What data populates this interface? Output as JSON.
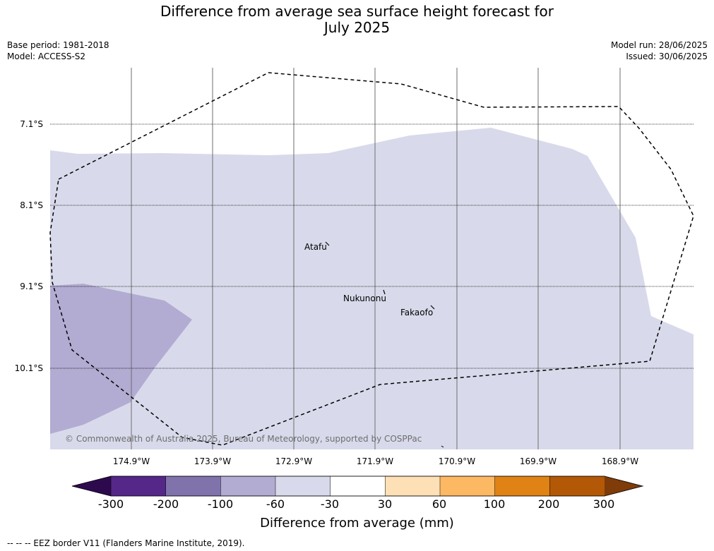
{
  "title": {
    "line1": "Difference from average sea surface height forecast for",
    "line2": "July 2025"
  },
  "meta_left": {
    "base_period": "Base period: 1981-2018",
    "model": "Model: ACCESS-S2"
  },
  "meta_right": {
    "model_run": "Model run: 28/06/2025",
    "issued": "Issued: 30/06/2025"
  },
  "lat_labels": [
    "7.1°S",
    "8.1°S",
    "9.1°S",
    "10.1°S"
  ],
  "lon_labels": [
    "174.9°W",
    "173.9°W",
    "172.9°W",
    "171.9°W",
    "170.9°W",
    "169.9°W",
    "168.9°W"
  ],
  "places": [
    "Atafu",
    "Nukunonu",
    "Fakaofo"
  ],
  "copyright": "© Commonwealth of Australia 2025, Bureau of Meteorology, supported by COSPPac",
  "colorbar": {
    "ticks": [
      "-300",
      "-200",
      "-100",
      "-60",
      "-30",
      "30",
      "60",
      "100",
      "200",
      "300"
    ],
    "bin_colors": [
      "#2d0a4e",
      "#542788",
      "#8073ac",
      "#b2abd2",
      "#d8daeb",
      "#ffffff",
      "#fee0b6",
      "#fdb863",
      "#e08214",
      "#b35806",
      "#7f3b08"
    ],
    "title": "Difference from average (mm)"
  },
  "footnote": "--  --  -- EEZ border V11 (Flanders Marine Institute, 2019).",
  "fields": [
    {
      "class": "-60 to -30 mm",
      "color": "#d8daeb"
    },
    {
      "class": "-100 to -60 mm",
      "color": "#b2abd2"
    }
  ]
}
